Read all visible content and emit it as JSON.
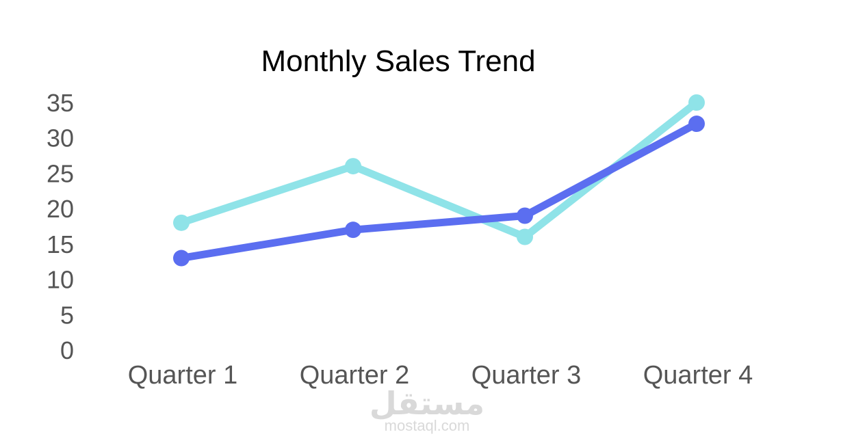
{
  "chart_data": {
    "type": "line",
    "title": "Monthly Sales Trend",
    "categories": [
      "Quarter 1",
      "Quarter 2",
      "Quarter 3",
      "Quarter 4"
    ],
    "series": [
      {
        "values": [
          18,
          26,
          16,
          35
        ],
        "color": "#8fe3e8"
      },
      {
        "values": [
          13,
          17,
          19,
          32
        ],
        "color": "#5b6ef0"
      }
    ],
    "yticks": [
      "0",
      "5",
      "10",
      "15",
      "20",
      "25",
      "30",
      "35"
    ],
    "ylim": [
      0,
      35
    ],
    "grid": false,
    "legend": "none"
  },
  "watermark": {
    "arabic": "مستقل",
    "latin": "mostaql.com"
  }
}
